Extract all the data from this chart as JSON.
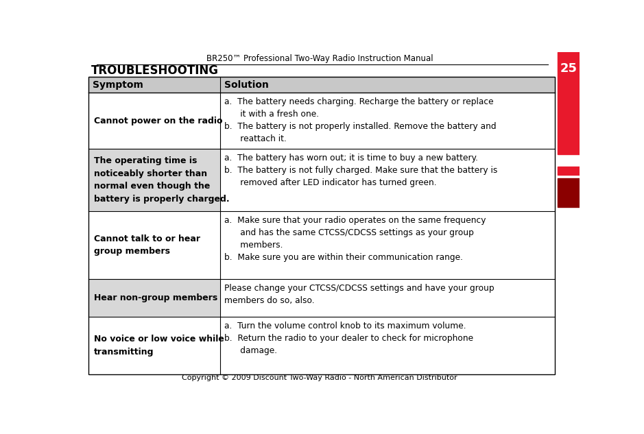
{
  "page_title": "BR250™ Professional Two-Way Radio Instruction Manual",
  "page_number": "25",
  "section_title": "TROUBLESHOOTING",
  "copyright": "Copyright © 2009 Discount Two-Way Radio - North American Distributor",
  "header_row_bg": "#c8c8c8",
  "symptom_gray_bg": "#d8d8d8",
  "white": "#ffffff",
  "red_bright": "#e8192c",
  "red_dark": "#8b0000",
  "black": "#000000",
  "rows": [
    {
      "symptom_lines": [
        "Cannot power on the radio"
      ],
      "solution_lines": [
        "a.  The battery needs charging. Recharge the battery or replace",
        "      it with a fresh one.",
        "b.  The battery is not properly installed. Remove the battery and",
        "      reattach it."
      ],
      "shade": "white"
    },
    {
      "symptom_lines": [
        "The operating time is",
        "noticeably shorter than",
        "normal even though the",
        "battery is properly charged."
      ],
      "solution_lines": [
        "a.  The battery has worn out; it is time to buy a new battery.",
        "b.  The battery is not fully charged. Make sure that the battery is",
        "      removed after LED indicator has turned green."
      ],
      "shade": "gray"
    },
    {
      "symptom_lines": [
        "Cannot talk to or hear",
        "group members"
      ],
      "solution_lines": [
        "a.  Make sure that your radio operates on the same frequency",
        "      and has the same CTCSS/CDCSS settings as your group",
        "      members.",
        "b.  Make sure you are within their communication range."
      ],
      "shade": "white"
    },
    {
      "symptom_lines": [
        "Hear non-group members"
      ],
      "solution_lines": [
        "Please change your CTCSS/CDCSS settings and have your group",
        "members do so, also."
      ],
      "shade": "gray"
    },
    {
      "symptom_lines": [
        "No voice or low voice while",
        "transmitting"
      ],
      "solution_lines": [
        "a.  Turn the volume control knob to its maximum volume.",
        "b.  Return the radio to your dealer to check for microphone",
        "      damage."
      ],
      "shade": "white"
    }
  ]
}
